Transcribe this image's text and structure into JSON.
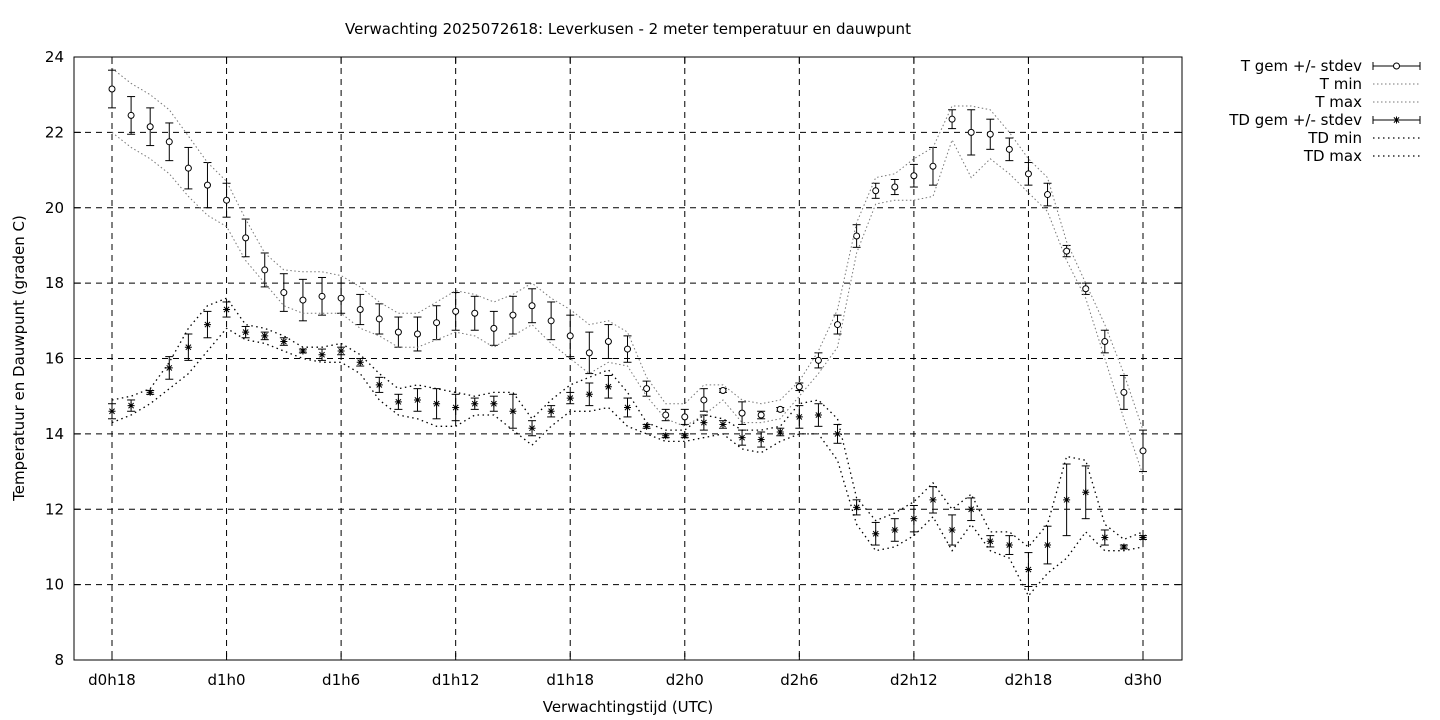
{
  "chart_data": {
    "type": "line",
    "title": "Verwachting 2025072618: Leverkusen - 2 meter temperatuur en dauwpunt",
    "xlabel": "Verwachtingstijd (UTC)",
    "ylabel": "Temperatuur en Dauwpunt (graden C)",
    "xlim": [
      18,
      72
    ],
    "ylim": [
      8,
      24
    ],
    "y_ticks": [
      8,
      10,
      12,
      14,
      16,
      18,
      20,
      22,
      24
    ],
    "x_ticks": [
      {
        "x": 18,
        "label": "d0h18"
      },
      {
        "x": 24,
        "label": "d1h0"
      },
      {
        "x": 30,
        "label": "d1h6"
      },
      {
        "x": 36,
        "label": "d1h12"
      },
      {
        "x": 42,
        "label": "d1h18"
      },
      {
        "x": 48,
        "label": "d2h0"
      },
      {
        "x": 54,
        "label": "d2h6"
      },
      {
        "x": 60,
        "label": "d2h12"
      },
      {
        "x": 66,
        "label": "d2h18"
      },
      {
        "x": 72,
        "label": "d3h0"
      }
    ],
    "grid": true,
    "legend_position": "outside-top-right",
    "x": [
      18,
      19,
      20,
      21,
      22,
      23,
      24,
      25,
      26,
      27,
      28,
      29,
      30,
      31,
      32,
      33,
      34,
      35,
      36,
      37,
      38,
      39,
      40,
      41,
      42,
      43,
      44,
      45,
      46,
      47,
      48,
      49,
      50,
      51,
      52,
      53,
      54,
      55,
      56,
      57,
      58,
      59,
      60,
      61,
      62,
      63,
      64,
      65,
      66,
      67,
      68,
      69,
      70,
      71,
      72
    ],
    "series": [
      {
        "name": "T gem +/- stdev",
        "marker": "circle",
        "values": [
          23.15,
          22.45,
          22.15,
          21.75,
          21.05,
          20.6,
          20.2,
          19.2,
          18.35,
          17.75,
          17.55,
          17.65,
          17.6,
          17.3,
          17.05,
          16.7,
          16.65,
          16.95,
          17.25,
          17.2,
          16.8,
          17.15,
          17.4,
          17.0,
          16.6,
          16.15,
          16.45,
          16.25,
          15.2,
          14.5,
          14.45,
          14.9,
          15.15,
          14.55,
          14.5,
          14.65,
          15.25,
          15.95,
          16.9,
          19.25,
          20.45,
          20.55,
          20.85,
          21.1,
          22.35,
          22.0,
          21.95,
          21.55,
          20.9,
          20.35,
          18.85,
          17.85,
          16.45,
          15.1,
          13.55
        ],
        "stdev": [
          0.5,
          0.5,
          0.5,
          0.5,
          0.55,
          0.6,
          0.45,
          0.5,
          0.45,
          0.5,
          0.55,
          0.5,
          0.4,
          0.4,
          0.4,
          0.4,
          0.45,
          0.45,
          0.5,
          0.45,
          0.45,
          0.5,
          0.45,
          0.5,
          0.55,
          0.55,
          0.45,
          0.35,
          0.2,
          0.15,
          0.2,
          0.3,
          0.05,
          0.3,
          0.1,
          0.05,
          0.1,
          0.2,
          0.25,
          0.3,
          0.2,
          0.2,
          0.3,
          0.5,
          0.25,
          0.6,
          0.4,
          0.3,
          0.3,
          0.3,
          0.15,
          0.15,
          0.3,
          0.45,
          0.55
        ]
      },
      {
        "name": "T min",
        "style": "dotted",
        "values": [
          22.0,
          21.6,
          21.3,
          20.9,
          20.3,
          19.8,
          19.5,
          18.6,
          18.0,
          17.4,
          17.2,
          17.2,
          17.2,
          16.8,
          16.6,
          16.3,
          16.3,
          16.5,
          16.7,
          16.6,
          16.3,
          16.6,
          16.9,
          16.4,
          16.0,
          15.6,
          15.9,
          15.8,
          15.0,
          14.4,
          14.2,
          14.5,
          14.9,
          14.3,
          14.3,
          14.4,
          15.0,
          15.6,
          16.3,
          18.8,
          20.1,
          20.2,
          20.2,
          20.3,
          21.8,
          20.8,
          21.3,
          20.9,
          20.4,
          19.9,
          18.6,
          17.6,
          16.0,
          14.4,
          12.9
        ]
      },
      {
        "name": "T max",
        "style": "dotted",
        "values": [
          23.7,
          23.3,
          23.0,
          22.6,
          21.9,
          21.2,
          20.7,
          19.7,
          18.8,
          18.35,
          18.3,
          18.3,
          18.2,
          17.9,
          17.5,
          17.2,
          17.2,
          17.5,
          17.8,
          17.7,
          17.5,
          17.7,
          18.0,
          17.6,
          17.3,
          16.9,
          17.0,
          16.7,
          15.5,
          14.8,
          14.8,
          15.3,
          15.3,
          14.9,
          14.8,
          14.9,
          15.4,
          16.2,
          17.3,
          19.6,
          20.8,
          20.9,
          21.3,
          21.6,
          22.7,
          22.7,
          22.6,
          22.0,
          21.3,
          20.8,
          19.1,
          18.0,
          16.9,
          15.6,
          14.1
        ]
      },
      {
        "name": "TD gem +/- stdev",
        "marker": "star",
        "values": [
          14.6,
          14.75,
          15.1,
          15.75,
          16.3,
          16.9,
          17.3,
          16.7,
          16.6,
          16.45,
          16.2,
          16.1,
          16.2,
          15.9,
          15.3,
          14.85,
          14.9,
          14.8,
          14.7,
          14.8,
          14.8,
          14.6,
          14.15,
          14.6,
          14.95,
          15.05,
          15.25,
          14.7,
          14.2,
          13.95,
          13.95,
          14.3,
          14.25,
          13.9,
          13.85,
          14.05,
          14.45,
          14.5,
          14.0,
          12.05,
          11.35,
          11.45,
          11.75,
          12.25,
          11.45,
          12.0,
          11.15,
          11.05,
          10.4,
          11.05,
          12.25,
          12.45,
          11.25,
          11.0,
          11.25
        ],
        "stdev": [
          0.2,
          0.15,
          0.05,
          0.3,
          0.35,
          0.35,
          0.2,
          0.15,
          0.1,
          0.1,
          0.05,
          0.15,
          0.1,
          0.1,
          0.2,
          0.2,
          0.3,
          0.4,
          0.35,
          0.15,
          0.2,
          0.45,
          0.2,
          0.15,
          0.15,
          0.3,
          0.3,
          0.25,
          0.05,
          0.05,
          0.05,
          0.2,
          0.1,
          0.2,
          0.2,
          0.1,
          0.3,
          0.3,
          0.25,
          0.2,
          0.3,
          0.3,
          0.35,
          0.35,
          0.4,
          0.3,
          0.15,
          0.25,
          0.45,
          0.5,
          0.95,
          0.7,
          0.2,
          0.05,
          0.05
        ]
      },
      {
        "name": "TD min",
        "style": "dotted",
        "values": [
          14.3,
          14.5,
          14.8,
          15.2,
          15.6,
          16.2,
          16.8,
          16.5,
          16.4,
          16.2,
          16.0,
          15.9,
          15.9,
          15.6,
          14.9,
          14.5,
          14.4,
          14.2,
          14.2,
          14.5,
          14.5,
          14.1,
          13.7,
          14.2,
          14.6,
          14.6,
          14.7,
          14.2,
          14.0,
          13.8,
          13.8,
          13.9,
          14.0,
          13.6,
          13.5,
          13.8,
          14.0,
          14.0,
          13.3,
          11.6,
          10.9,
          11.0,
          11.3,
          11.8,
          10.9,
          11.6,
          10.9,
          10.7,
          9.7,
          10.3,
          10.7,
          11.4,
          10.9,
          10.9,
          11.0
        ]
      },
      {
        "name": "TD max",
        "style": "dotted",
        "values": [
          14.9,
          15.0,
          15.2,
          15.9,
          16.8,
          17.4,
          17.6,
          16.9,
          16.8,
          16.6,
          16.3,
          16.3,
          16.4,
          16.1,
          15.6,
          15.2,
          15.3,
          15.2,
          15.1,
          15.0,
          15.1,
          15.1,
          14.4,
          14.9,
          15.3,
          15.5,
          15.7,
          15.1,
          14.3,
          14.1,
          14.1,
          14.5,
          14.4,
          14.1,
          14.1,
          14.2,
          14.8,
          14.9,
          14.4,
          12.3,
          11.7,
          11.9,
          12.2,
          12.7,
          12.0,
          12.4,
          11.4,
          11.4,
          11.0,
          11.6,
          13.4,
          13.3,
          11.6,
          11.2,
          11.4
        ]
      }
    ]
  }
}
